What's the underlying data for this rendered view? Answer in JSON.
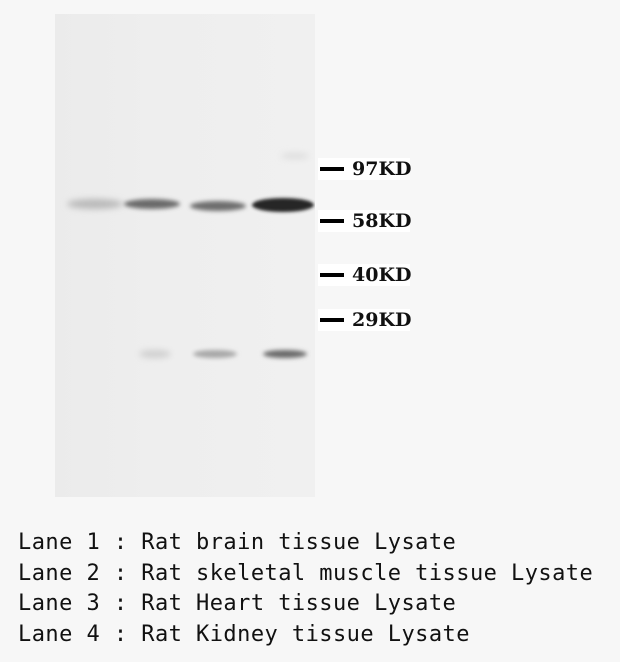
{
  "markers": [
    {
      "label": "97KD"
    },
    {
      "label": "58KD"
    },
    {
      "label": "40KD"
    },
    {
      "label": "29KD"
    }
  ],
  "legend": [
    {
      "text": "Lane 1 : Rat brain tissue Lysate"
    },
    {
      "text": "Lane 2 : Rat skeletal muscle tissue Lysate"
    },
    {
      "text": "Lane 3 : Rat Heart tissue Lysate"
    },
    {
      "text": "Lane 4 : Rat Kidney tissue Lysate"
    }
  ]
}
